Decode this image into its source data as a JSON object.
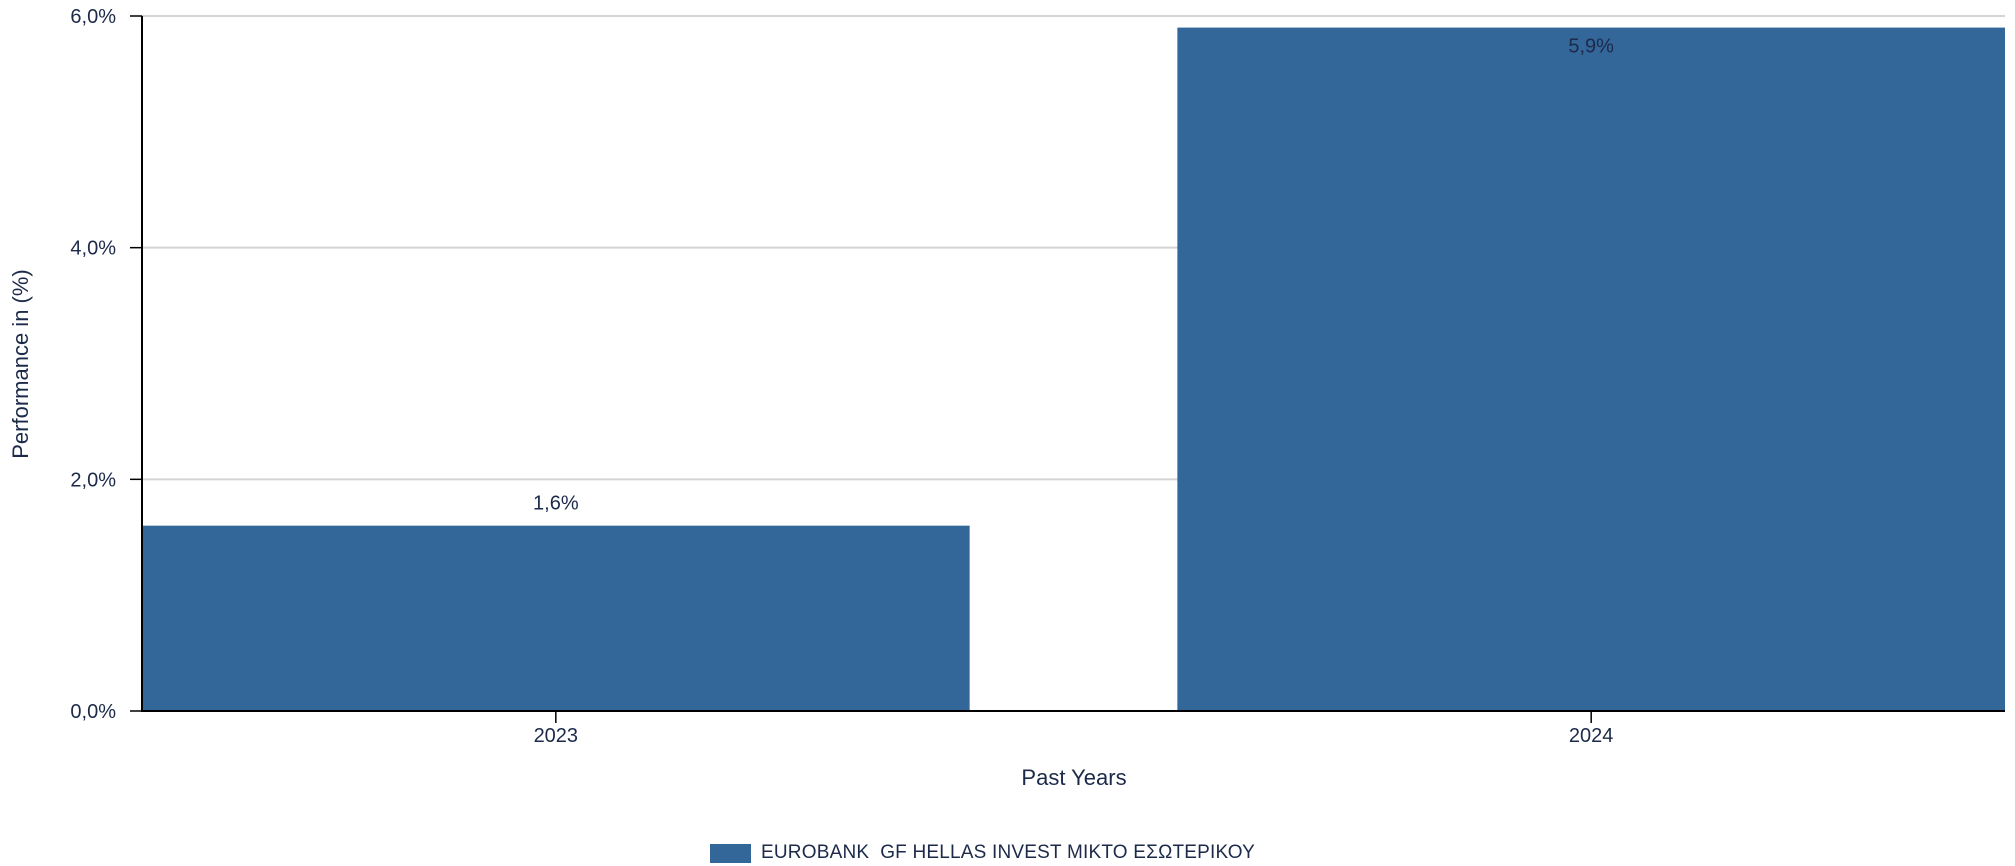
{
  "chart_data": {
    "type": "bar",
    "categories": [
      "2023",
      "2024"
    ],
    "series": [
      {
        "name": "EUROBANK  GF HELLAS INVEST ΜΙΚΤΟ ΕΣΩΤΕΡΙΚΟΥ",
        "values": [
          1.6,
          5.9
        ],
        "color": "#336699"
      }
    ],
    "data_labels": [
      "1,6%",
      "5,9%"
    ],
    "xlabel": "Past Years",
    "ylabel": "Performance in (%)",
    "ylim": [
      0,
      6
    ],
    "yticks": [
      0,
      2,
      4,
      6
    ],
    "ytick_labels": [
      "0,0%",
      "2,0%",
      "4,0%",
      "6,0%"
    ],
    "grid": true,
    "legend_position": "bottom-center"
  },
  "legend": {
    "label": "EUROBANK  GF HELLAS INVEST ΜΙΚΤΟ ΕΣΩΤΕΡΙΚΟΥ",
    "color": "#336699"
  }
}
